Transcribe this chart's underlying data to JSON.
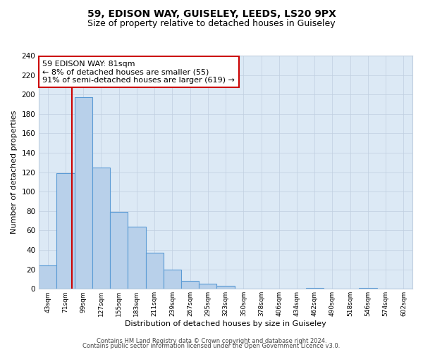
{
  "title": "59, EDISON WAY, GUISELEY, LEEDS, LS20 9PX",
  "subtitle": "Size of property relative to detached houses in Guiseley",
  "xlabel": "Distribution of detached houses by size in Guiseley",
  "ylabel": "Number of detached properties",
  "bin_labels": [
    "43sqm",
    "71sqm",
    "99sqm",
    "127sqm",
    "155sqm",
    "183sqm",
    "211sqm",
    "239sqm",
    "267sqm",
    "295sqm",
    "323sqm",
    "350sqm",
    "378sqm",
    "406sqm",
    "434sqm",
    "462sqm",
    "490sqm",
    "518sqm",
    "546sqm",
    "574sqm",
    "602sqm"
  ],
  "bar_heights": [
    24,
    119,
    197,
    125,
    79,
    64,
    37,
    20,
    8,
    5,
    3,
    0,
    0,
    0,
    0,
    1,
    0,
    0,
    1,
    0,
    0
  ],
  "bar_color": "#b8d0ea",
  "bar_edge_color": "#5b9bd5",
  "ylim": [
    0,
    240
  ],
  "yticks": [
    0,
    20,
    40,
    60,
    80,
    100,
    120,
    140,
    160,
    180,
    200,
    220,
    240
  ],
  "annotation_title": "59 EDISON WAY: 81sqm",
  "annotation_line1": "← 8% of detached houses are smaller (55)",
  "annotation_line2": "91% of semi-detached houses are larger (619) →",
  "annotation_box_color": "#cc0000",
  "red_line_bin": 1.357,
  "background_color": "#dce9f5",
  "footer_line1": "Contains HM Land Registry data © Crown copyright and database right 2024.",
  "footer_line2": "Contains public sector information licensed under the Open Government Licence v3.0."
}
